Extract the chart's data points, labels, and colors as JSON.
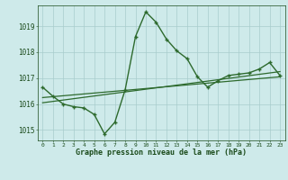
{
  "x": [
    0,
    1,
    2,
    3,
    4,
    5,
    6,
    7,
    8,
    9,
    10,
    11,
    12,
    13,
    14,
    15,
    16,
    17,
    18,
    19,
    20,
    21,
    22,
    23
  ],
  "pressure": [
    1016.65,
    1016.3,
    1016.0,
    1015.9,
    1015.85,
    1015.6,
    1014.85,
    1015.3,
    1016.55,
    1018.6,
    1019.55,
    1019.15,
    1018.5,
    1018.05,
    1017.75,
    1017.05,
    1016.65,
    1016.9,
    1017.1,
    1017.15,
    1017.2,
    1017.35,
    1017.6,
    1017.1
  ],
  "trend1_x": [
    0,
    23
  ],
  "trend1_y": [
    1016.25,
    1017.05
  ],
  "trend2_x": [
    0,
    23
  ],
  "trend2_y": [
    1016.05,
    1017.25
  ],
  "ylim_min": 1014.6,
  "ylim_max": 1019.8,
  "yticks": [
    1015,
    1016,
    1017,
    1018,
    1019
  ],
  "xticks": [
    0,
    1,
    2,
    3,
    4,
    5,
    6,
    7,
    8,
    9,
    10,
    11,
    12,
    13,
    14,
    15,
    16,
    17,
    18,
    19,
    20,
    21,
    22,
    23
  ],
  "xlabel": "Graphe pression niveau de la mer (hPa)",
  "line_color": "#2d6a2d",
  "bg_color": "#ceeaea",
  "grid_color": "#a8cccc",
  "tick_color": "#1a4a1a",
  "label_color": "#1a4a1a"
}
